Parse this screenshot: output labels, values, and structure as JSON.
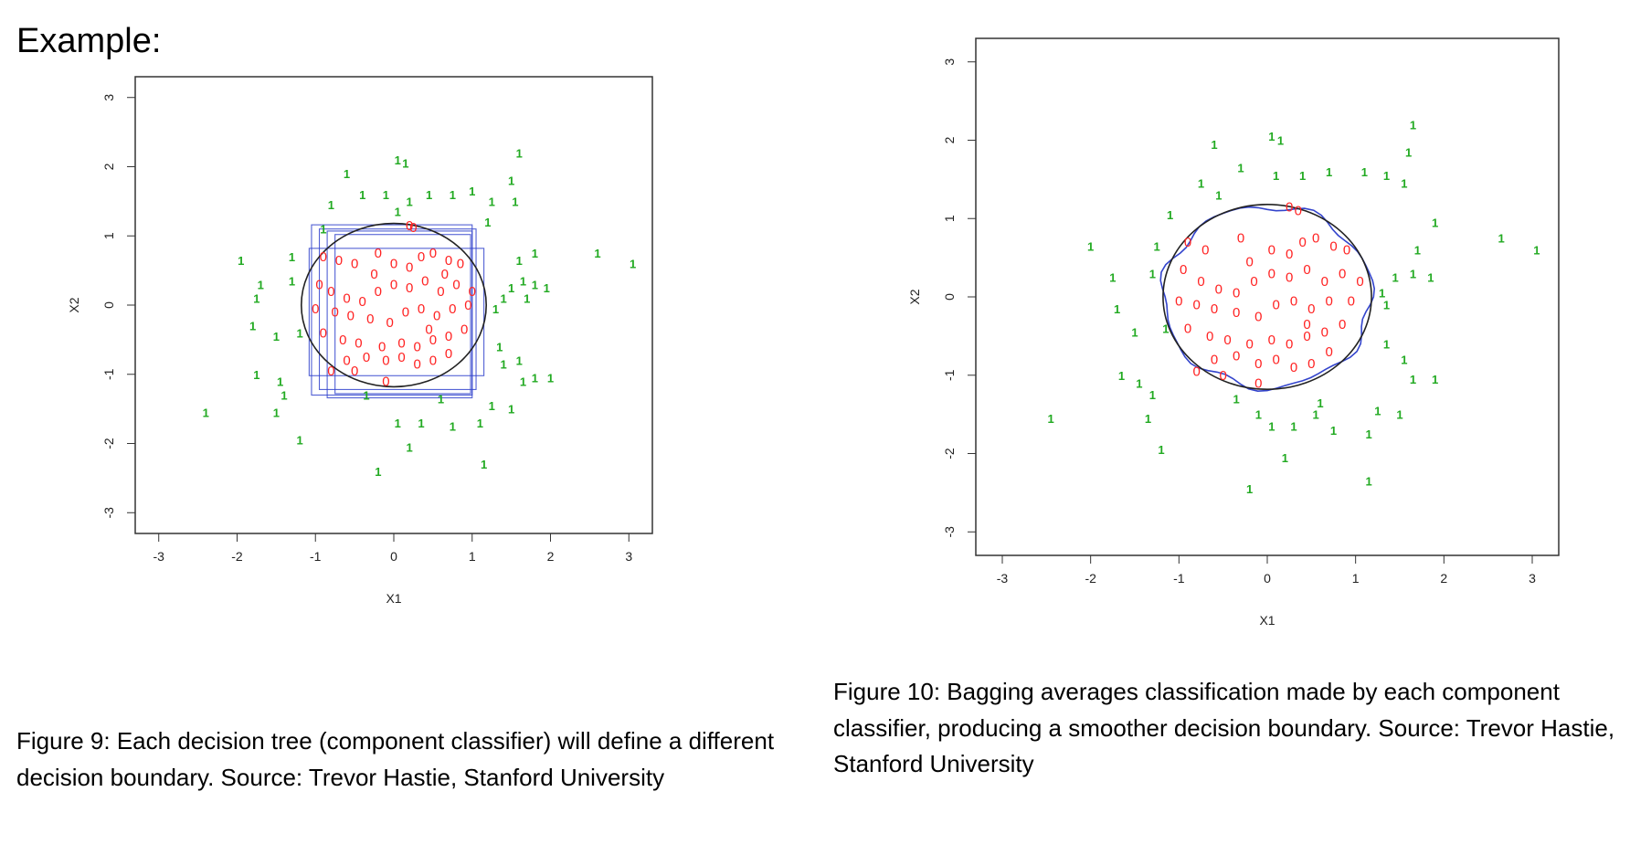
{
  "heading": "Example:",
  "colors": {
    "class_one": "#22aa22",
    "class_zero": "#ff2222",
    "tree_boundary": "#3344cc",
    "true_boundary": "#222222"
  },
  "charts": [
    {
      "caption": "Figure 9: Each decision tree (component classifier) will define a different decision boundary. Source: Trevor Hastie, Stanford University",
      "chart_data": {
        "type": "scatter",
        "xlabel": "X1",
        "ylabel": "X2",
        "xlim": [
          -3.3,
          3.3
        ],
        "ylim": [
          -3.3,
          3.3
        ],
        "xticks": [
          "-3",
          "-2",
          "-1",
          "0",
          "1",
          "2",
          "3"
        ],
        "yticks": [
          "-3",
          "-2",
          "-1",
          "0",
          "1",
          "2",
          "3"
        ],
        "point_labels": {
          "class_one": "1",
          "class_zero": "0"
        },
        "true_boundary": {
          "shape": "circle",
          "radius": 1.18
        },
        "tree_boundaries": [
          [
            -1.08,
            -1.02,
            1.15,
            0.82
          ],
          [
            -1.05,
            -1.3,
            1.0,
            1.16
          ],
          [
            -0.95,
            -1.22,
            1.05,
            1.1
          ],
          [
            -0.85,
            -1.34,
            1.0,
            1.07
          ],
          [
            -0.75,
            -1.28,
            0.98,
            1.02
          ]
        ],
        "class_one": [
          [
            -0.6,
            1.9
          ],
          [
            0.05,
            2.1
          ],
          [
            0.15,
            2.05
          ],
          [
            1.6,
            2.2
          ],
          [
            1.5,
            1.8
          ],
          [
            -0.4,
            1.6
          ],
          [
            -0.1,
            1.6
          ],
          [
            0.2,
            1.5
          ],
          [
            0.45,
            1.6
          ],
          [
            0.75,
            1.6
          ],
          [
            1.0,
            1.65
          ],
          [
            1.25,
            1.5
          ],
          [
            1.55,
            1.5
          ],
          [
            -0.8,
            1.45
          ],
          [
            0.05,
            1.35
          ],
          [
            -1.95,
            0.65
          ],
          [
            -1.7,
            0.3
          ],
          [
            -1.75,
            0.1
          ],
          [
            -1.8,
            -0.3
          ],
          [
            -1.75,
            -1.0
          ],
          [
            -1.45,
            -1.1
          ],
          [
            -1.4,
            -1.3
          ],
          [
            -1.5,
            -1.55
          ],
          [
            -2.4,
            -1.55
          ],
          [
            -1.2,
            -1.95
          ],
          [
            -0.2,
            -2.4
          ],
          [
            0.2,
            -2.05
          ],
          [
            0.35,
            -1.7
          ],
          [
            0.05,
            -1.7
          ],
          [
            0.75,
            -1.75
          ],
          [
            1.1,
            -1.7
          ],
          [
            1.25,
            -1.45
          ],
          [
            1.5,
            -1.5
          ],
          [
            1.15,
            -2.3
          ],
          [
            1.35,
            -0.6
          ],
          [
            1.4,
            -0.85
          ],
          [
            1.6,
            -0.8
          ],
          [
            1.65,
            -1.1
          ],
          [
            1.8,
            -1.05
          ],
          [
            2.0,
            -1.05
          ],
          [
            1.5,
            0.25
          ],
          [
            1.65,
            0.35
          ],
          [
            1.8,
            0.3
          ],
          [
            1.95,
            0.25
          ],
          [
            1.7,
            0.1
          ],
          [
            2.6,
            0.75
          ],
          [
            3.05,
            0.6
          ],
          [
            1.8,
            0.75
          ],
          [
            1.6,
            0.65
          ],
          [
            -1.3,
            0.7
          ],
          [
            -1.3,
            0.35
          ],
          [
            -1.2,
            -0.4
          ],
          [
            -1.5,
            -0.45
          ],
          [
            0.6,
            -1.35
          ],
          [
            -0.35,
            -1.3
          ],
          [
            1.3,
            -0.05
          ],
          [
            1.4,
            0.1
          ],
          [
            -0.9,
            1.1
          ],
          [
            1.2,
            1.2
          ]
        ],
        "class_zero": [
          [
            0.2,
            1.15
          ],
          [
            0.25,
            1.12
          ],
          [
            -0.9,
            0.7
          ],
          [
            -0.7,
            0.65
          ],
          [
            -0.5,
            0.6
          ],
          [
            -0.2,
            0.75
          ],
          [
            0.0,
            0.6
          ],
          [
            0.2,
            0.55
          ],
          [
            0.35,
            0.7
          ],
          [
            0.5,
            0.75
          ],
          [
            0.7,
            0.65
          ],
          [
            0.85,
            0.6
          ],
          [
            -0.95,
            0.3
          ],
          [
            -0.8,
            0.2
          ],
          [
            -0.6,
            0.1
          ],
          [
            -0.4,
            0.05
          ],
          [
            -0.2,
            0.2
          ],
          [
            0.0,
            0.3
          ],
          [
            0.2,
            0.25
          ],
          [
            0.4,
            0.35
          ],
          [
            0.6,
            0.2
          ],
          [
            0.8,
            0.3
          ],
          [
            1.0,
            0.2
          ],
          [
            -1.0,
            -0.05
          ],
          [
            -0.75,
            -0.1
          ],
          [
            -0.55,
            -0.15
          ],
          [
            -0.3,
            -0.2
          ],
          [
            -0.05,
            -0.25
          ],
          [
            0.15,
            -0.1
          ],
          [
            0.35,
            -0.05
          ],
          [
            0.55,
            -0.15
          ],
          [
            0.75,
            -0.05
          ],
          [
            0.95,
            0.0
          ],
          [
            -0.9,
            -0.4
          ],
          [
            -0.65,
            -0.5
          ],
          [
            -0.45,
            -0.55
          ],
          [
            -0.15,
            -0.6
          ],
          [
            0.1,
            -0.55
          ],
          [
            0.3,
            -0.6
          ],
          [
            0.5,
            -0.5
          ],
          [
            0.7,
            -0.45
          ],
          [
            0.9,
            -0.35
          ],
          [
            -0.6,
            -0.8
          ],
          [
            -0.35,
            -0.75
          ],
          [
            -0.1,
            -0.8
          ],
          [
            0.1,
            -0.75
          ],
          [
            0.3,
            -0.85
          ],
          [
            0.5,
            -0.8
          ],
          [
            0.7,
            -0.7
          ],
          [
            -0.8,
            -0.95
          ],
          [
            -0.5,
            -0.95
          ],
          [
            -0.1,
            -1.1
          ],
          [
            0.45,
            -0.35
          ],
          [
            -0.25,
            0.45
          ],
          [
            0.65,
            0.45
          ]
        ]
      }
    },
    {
      "caption": "Figure 10: Bagging averages classification made by each component classifier, producing a smoother decision boundary. Source: Trevor Hastie, Stanford University",
      "chart_data": {
        "type": "scatter",
        "xlabel": "X1",
        "ylabel": "X2",
        "xlim": [
          -3.3,
          3.3
        ],
        "ylim": [
          -3.3,
          3.3
        ],
        "xticks": [
          "-3",
          "-2",
          "-1",
          "0",
          "1",
          "2",
          "3"
        ],
        "yticks": [
          "-3",
          "-2",
          "-1",
          "0",
          "1",
          "2",
          "3"
        ],
        "point_labels": {
          "class_one": "1",
          "class_zero": "0"
        },
        "true_boundary": {
          "shape": "circle",
          "radius": 1.18
        },
        "class_one": [
          [
            1.65,
            2.2
          ],
          [
            1.6,
            1.85
          ],
          [
            1.55,
            1.45
          ],
          [
            -0.6,
            1.95
          ],
          [
            0.05,
            2.05
          ],
          [
            0.15,
            2.0
          ],
          [
            -0.3,
            1.65
          ],
          [
            0.1,
            1.55
          ],
          [
            0.4,
            1.55
          ],
          [
            0.7,
            1.6
          ],
          [
            1.1,
            1.6
          ],
          [
            1.35,
            1.55
          ],
          [
            -0.75,
            1.45
          ],
          [
            -0.55,
            1.3
          ],
          [
            -1.1,
            1.05
          ],
          [
            -2.0,
            0.65
          ],
          [
            -1.75,
            0.25
          ],
          [
            -1.7,
            -0.15
          ],
          [
            -1.65,
            -1.0
          ],
          [
            -1.45,
            -1.1
          ],
          [
            -1.3,
            -1.25
          ],
          [
            -1.35,
            -1.55
          ],
          [
            -2.45,
            -1.55
          ],
          [
            -1.2,
            -1.95
          ],
          [
            -0.2,
            -2.45
          ],
          [
            0.2,
            -2.05
          ],
          [
            0.3,
            -1.65
          ],
          [
            0.05,
            -1.65
          ],
          [
            0.75,
            -1.7
          ],
          [
            1.15,
            -1.75
          ],
          [
            1.25,
            -1.45
          ],
          [
            1.5,
            -1.5
          ],
          [
            1.15,
            -2.35
          ],
          [
            1.35,
            -0.6
          ],
          [
            1.55,
            -0.8
          ],
          [
            1.65,
            -1.05
          ],
          [
            1.9,
            -1.05
          ],
          [
            1.45,
            0.25
          ],
          [
            1.65,
            0.3
          ],
          [
            1.85,
            0.25
          ],
          [
            2.65,
            0.75
          ],
          [
            3.05,
            0.6
          ],
          [
            1.9,
            0.95
          ],
          [
            1.7,
            0.6
          ],
          [
            -1.25,
            0.65
          ],
          [
            -1.3,
            0.3
          ],
          [
            -1.15,
            -0.4
          ],
          [
            -1.5,
            -0.45
          ],
          [
            0.6,
            -1.35
          ],
          [
            -0.35,
            -1.3
          ],
          [
            1.35,
            -0.1
          ],
          [
            1.3,
            0.05
          ],
          [
            0.55,
            -1.5
          ],
          [
            -0.1,
            -1.5
          ]
        ],
        "class_zero": [
          [
            0.25,
            1.15
          ],
          [
            0.35,
            1.1
          ],
          [
            -0.9,
            0.7
          ],
          [
            -0.7,
            0.6
          ],
          [
            -0.3,
            0.75
          ],
          [
            0.05,
            0.6
          ],
          [
            0.25,
            0.55
          ],
          [
            0.4,
            0.7
          ],
          [
            0.55,
            0.75
          ],
          [
            0.75,
            0.65
          ],
          [
            0.9,
            0.6
          ],
          [
            -0.95,
            0.35
          ],
          [
            -0.75,
            0.2
          ],
          [
            -0.55,
            0.1
          ],
          [
            -0.35,
            0.05
          ],
          [
            -0.15,
            0.2
          ],
          [
            0.05,
            0.3
          ],
          [
            0.25,
            0.25
          ],
          [
            0.45,
            0.35
          ],
          [
            0.65,
            0.2
          ],
          [
            0.85,
            0.3
          ],
          [
            1.05,
            0.2
          ],
          [
            -1.0,
            -0.05
          ],
          [
            -0.8,
            -0.1
          ],
          [
            -0.6,
            -0.15
          ],
          [
            -0.35,
            -0.2
          ],
          [
            -0.1,
            -0.25
          ],
          [
            0.1,
            -0.1
          ],
          [
            0.3,
            -0.05
          ],
          [
            0.5,
            -0.15
          ],
          [
            0.7,
            -0.05
          ],
          [
            0.95,
            -0.05
          ],
          [
            -0.9,
            -0.4
          ],
          [
            -0.65,
            -0.5
          ],
          [
            -0.45,
            -0.55
          ],
          [
            -0.2,
            -0.6
          ],
          [
            0.05,
            -0.55
          ],
          [
            0.25,
            -0.6
          ],
          [
            0.45,
            -0.5
          ],
          [
            0.65,
            -0.45
          ],
          [
            0.85,
            -0.35
          ],
          [
            -0.6,
            -0.8
          ],
          [
            -0.35,
            -0.75
          ],
          [
            -0.1,
            -0.85
          ],
          [
            0.1,
            -0.8
          ],
          [
            0.3,
            -0.9
          ],
          [
            0.5,
            -0.85
          ],
          [
            0.7,
            -0.7
          ],
          [
            -0.8,
            -0.95
          ],
          [
            -0.5,
            -1.0
          ],
          [
            -0.1,
            -1.1
          ],
          [
            0.45,
            -0.35
          ],
          [
            -0.2,
            0.45
          ]
        ]
      }
    }
  ]
}
